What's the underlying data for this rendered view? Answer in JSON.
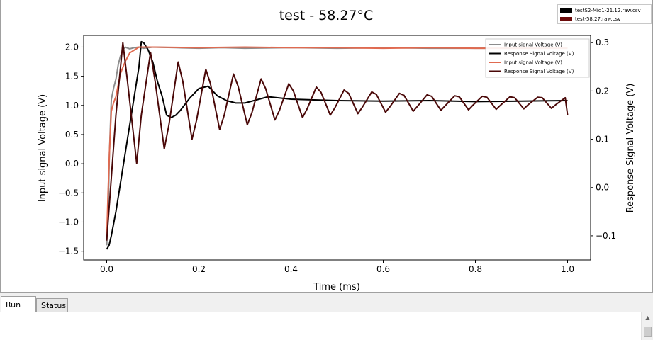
{
  "tabs": [
    {
      "label": "Run"
    },
    {
      "label": "Status"
    }
  ],
  "file_legend": [
    {
      "label": "testS2-Mid1-21.12.raw.csv",
      "color": "#000000"
    },
    {
      "label": "test-58.27.raw.csv",
      "color": "#6b0a0a"
    }
  ],
  "chart_data": {
    "type": "line",
    "title": "test - 58.27°C",
    "xlabel": "Time (ms)",
    "ylabel_left": "Input signal Voltage (V)",
    "ylabel_right": "Response Signal Voltage (V)",
    "xlim": [
      -0.05,
      1.05
    ],
    "ylim_left": [
      -1.65,
      2.2
    ],
    "ylim_right": [
      -0.15,
      0.315
    ],
    "xticks": [
      "0.0",
      "0.2",
      "0.4",
      "0.6",
      "0.8",
      "1.0"
    ],
    "yticks_left": [
      "−1.5",
      "−1.0",
      "−0.5",
      "0.0",
      "0.5",
      "1.0",
      "1.5",
      "2.0"
    ],
    "yticks_right": [
      "−0.1",
      "0.0",
      "0.1",
      "0.2",
      "0.3"
    ],
    "legend": [
      {
        "label": "Input signal Voltage (V)",
        "color": "#8c8c8c"
      },
      {
        "label": "Response Signal Voltage (V)",
        "color": "#000000"
      },
      {
        "label": "Input signal Voltage (V)",
        "color": "#e06a50"
      },
      {
        "label": "Response Signal Voltage (V)",
        "color": "#4a0808"
      }
    ],
    "series": [
      {
        "name": "Input signal Voltage (V) — testS2-Mid1-21.12",
        "axis": "left",
        "color": "#8c8c8c",
        "x": [
          0.0,
          0.003,
          0.006,
          0.01,
          0.015,
          0.02,
          0.025,
          0.03,
          0.035,
          0.04,
          0.05,
          0.06,
          0.07,
          0.08,
          0.1,
          0.15,
          0.2,
          0.25,
          0.3,
          0.4,
          0.5,
          0.6,
          0.7,
          0.8,
          0.9,
          1.0
        ],
        "y": [
          -1.4,
          -0.9,
          0.2,
          1.1,
          1.3,
          1.45,
          1.7,
          1.85,
          1.95,
          2.0,
          1.97,
          1.99,
          2.0,
          1.98,
          2.0,
          1.99,
          1.98,
          1.99,
          1.98,
          1.99,
          1.98,
          1.99,
          1.98,
          1.98,
          1.98,
          1.98
        ]
      },
      {
        "name": "Response Signal Voltage (V) — testS2-Mid1-21.12",
        "axis": "right",
        "color": "#000000",
        "x": [
          0.0,
          0.005,
          0.01,
          0.02,
          0.03,
          0.04,
          0.05,
          0.06,
          0.07,
          0.075,
          0.08,
          0.09,
          0.1,
          0.11,
          0.12,
          0.13,
          0.14,
          0.15,
          0.16,
          0.18,
          0.2,
          0.22,
          0.24,
          0.26,
          0.28,
          0.3,
          0.35,
          0.4,
          0.5,
          0.6,
          0.7,
          0.8,
          0.9,
          1.0
        ],
        "y": [
          -0.128,
          -0.12,
          -0.1,
          -0.05,
          0.01,
          0.07,
          0.13,
          0.19,
          0.25,
          0.302,
          0.3,
          0.285,
          0.26,
          0.22,
          0.19,
          0.15,
          0.145,
          0.15,
          0.16,
          0.185,
          0.205,
          0.21,
          0.19,
          0.18,
          0.175,
          0.175,
          0.188,
          0.183,
          0.18,
          0.179,
          0.18,
          0.178,
          0.179,
          0.18
        ]
      },
      {
        "name": "Input signal Voltage (V) — test-58.27",
        "axis": "left",
        "color": "#e06a50",
        "x": [
          0.0,
          0.003,
          0.006,
          0.01,
          0.015,
          0.02,
          0.03,
          0.04,
          0.05,
          0.06,
          0.07,
          0.1,
          0.2,
          0.3,
          0.4,
          0.5,
          0.6,
          0.7,
          0.8,
          0.9,
          1.0
        ],
        "y": [
          -1.3,
          -0.5,
          0.2,
          0.9,
          1.05,
          1.15,
          1.55,
          1.75,
          1.9,
          1.95,
          2.0,
          2.0,
          1.99,
          2.0,
          1.99,
          1.99,
          1.98,
          1.99,
          1.98,
          1.98,
          1.98
        ]
      },
      {
        "name": "Response Signal Voltage (V) — test-58.27",
        "axis": "right",
        "color": "#4a0808",
        "x": [
          0.0,
          0.01,
          0.02,
          0.035,
          0.045,
          0.065,
          0.075,
          0.095,
          0.105,
          0.125,
          0.135,
          0.155,
          0.165,
          0.185,
          0.195,
          0.215,
          0.225,
          0.245,
          0.255,
          0.275,
          0.285,
          0.305,
          0.315,
          0.335,
          0.345,
          0.365,
          0.375,
          0.395,
          0.405,
          0.425,
          0.435,
          0.455,
          0.465,
          0.485,
          0.495,
          0.515,
          0.525,
          0.545,
          0.555,
          0.575,
          0.585,
          0.605,
          0.615,
          0.635,
          0.645,
          0.665,
          0.675,
          0.695,
          0.705,
          0.725,
          0.735,
          0.755,
          0.765,
          0.785,
          0.795,
          0.815,
          0.825,
          0.845,
          0.855,
          0.875,
          0.885,
          0.905,
          0.915,
          0.935,
          0.945,
          0.965,
          0.975,
          0.995,
          1.0
        ],
        "y": [
          -0.11,
          0.02,
          0.15,
          0.3,
          0.22,
          0.05,
          0.15,
          0.28,
          0.22,
          0.08,
          0.13,
          0.26,
          0.22,
          0.1,
          0.14,
          0.245,
          0.215,
          0.12,
          0.15,
          0.235,
          0.21,
          0.13,
          0.155,
          0.225,
          0.205,
          0.14,
          0.16,
          0.215,
          0.2,
          0.145,
          0.163,
          0.208,
          0.197,
          0.15,
          0.165,
          0.202,
          0.195,
          0.153,
          0.167,
          0.198,
          0.193,
          0.156,
          0.168,
          0.195,
          0.191,
          0.158,
          0.169,
          0.192,
          0.189,
          0.16,
          0.17,
          0.19,
          0.188,
          0.161,
          0.171,
          0.189,
          0.187,
          0.162,
          0.171,
          0.188,
          0.186,
          0.163,
          0.172,
          0.187,
          0.186,
          0.164,
          0.172,
          0.186,
          0.15
        ]
      }
    ]
  }
}
